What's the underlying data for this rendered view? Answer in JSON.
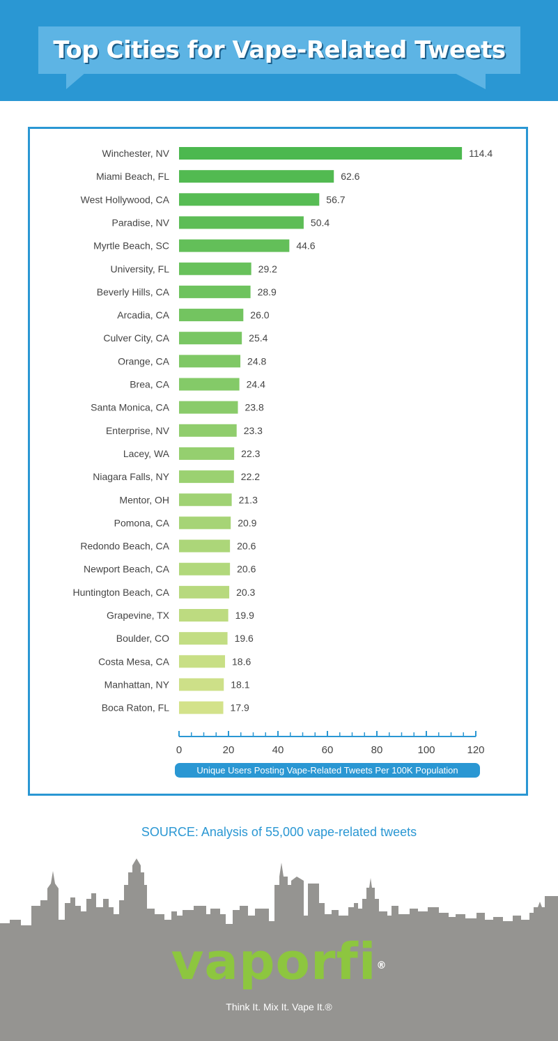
{
  "header": {
    "title": "Top Cities for Vape-Related Tweets"
  },
  "chart_data": {
    "type": "bar",
    "orientation": "horizontal",
    "categories": [
      "Winchester, NV",
      "Miami Beach, FL",
      "West Hollywood, CA",
      "Paradise, NV",
      "Myrtle Beach, SC",
      "University, FL",
      "Beverly Hills, CA",
      "Arcadia, CA",
      "Culver City, CA",
      "Orange, CA",
      "Brea, CA",
      "Santa Monica, CA",
      "Enterprise, NV",
      "Lacey, WA",
      "Niagara Falls, NY",
      "Mentor, OH",
      "Pomona, CA",
      "Redondo Beach, CA",
      "Newport Beach, CA",
      "Huntington Beach, CA",
      "Grapevine, TX",
      "Boulder, CO",
      "Costa Mesa, CA",
      "Manhattan, NY",
      "Boca Raton, FL"
    ],
    "values": [
      114.4,
      62.6,
      56.7,
      50.4,
      44.6,
      29.2,
      28.9,
      26.0,
      25.4,
      24.8,
      24.4,
      23.8,
      23.3,
      22.3,
      22.2,
      21.3,
      20.9,
      20.6,
      20.6,
      20.3,
      19.9,
      19.6,
      18.6,
      18.1,
      17.9
    ],
    "value_labels": [
      "114.4",
      "62.6",
      "56.7",
      "50.4",
      "44.6",
      "29.2",
      "28.9",
      "26.0",
      "25.4",
      "24.8",
      "24.4",
      "23.8",
      "23.3",
      "22.3",
      "22.2",
      "21.3",
      "20.9",
      "20.6",
      "20.6",
      "20.3",
      "19.9",
      "19.6",
      "18.6",
      "18.1",
      "17.9"
    ],
    "xlabel": "Unique Users Posting Vape-Related Tweets Per 100K Population",
    "xlim": [
      0,
      120
    ],
    "xticks": [
      0,
      20,
      40,
      60,
      80,
      100,
      120
    ],
    "grid": false,
    "legend": "none",
    "colors": {
      "bar_top": "#4cb84f",
      "bar_bottom": "#d3e28a",
      "axis": "#2a97d3",
      "xlabel_bg": "#2a97d3"
    }
  },
  "source": "SOURCE: Analysis of 55,000 vape-related tweets",
  "footer": {
    "logo": "vaporfi",
    "logo_mark": "®",
    "tagline": "Think It. Mix It. Vape It.®"
  },
  "colors": {
    "header_bg": "#2a97d3",
    "title_box": "#5db4e4",
    "skyline": "#959491",
    "logo": "#8dc63f"
  }
}
